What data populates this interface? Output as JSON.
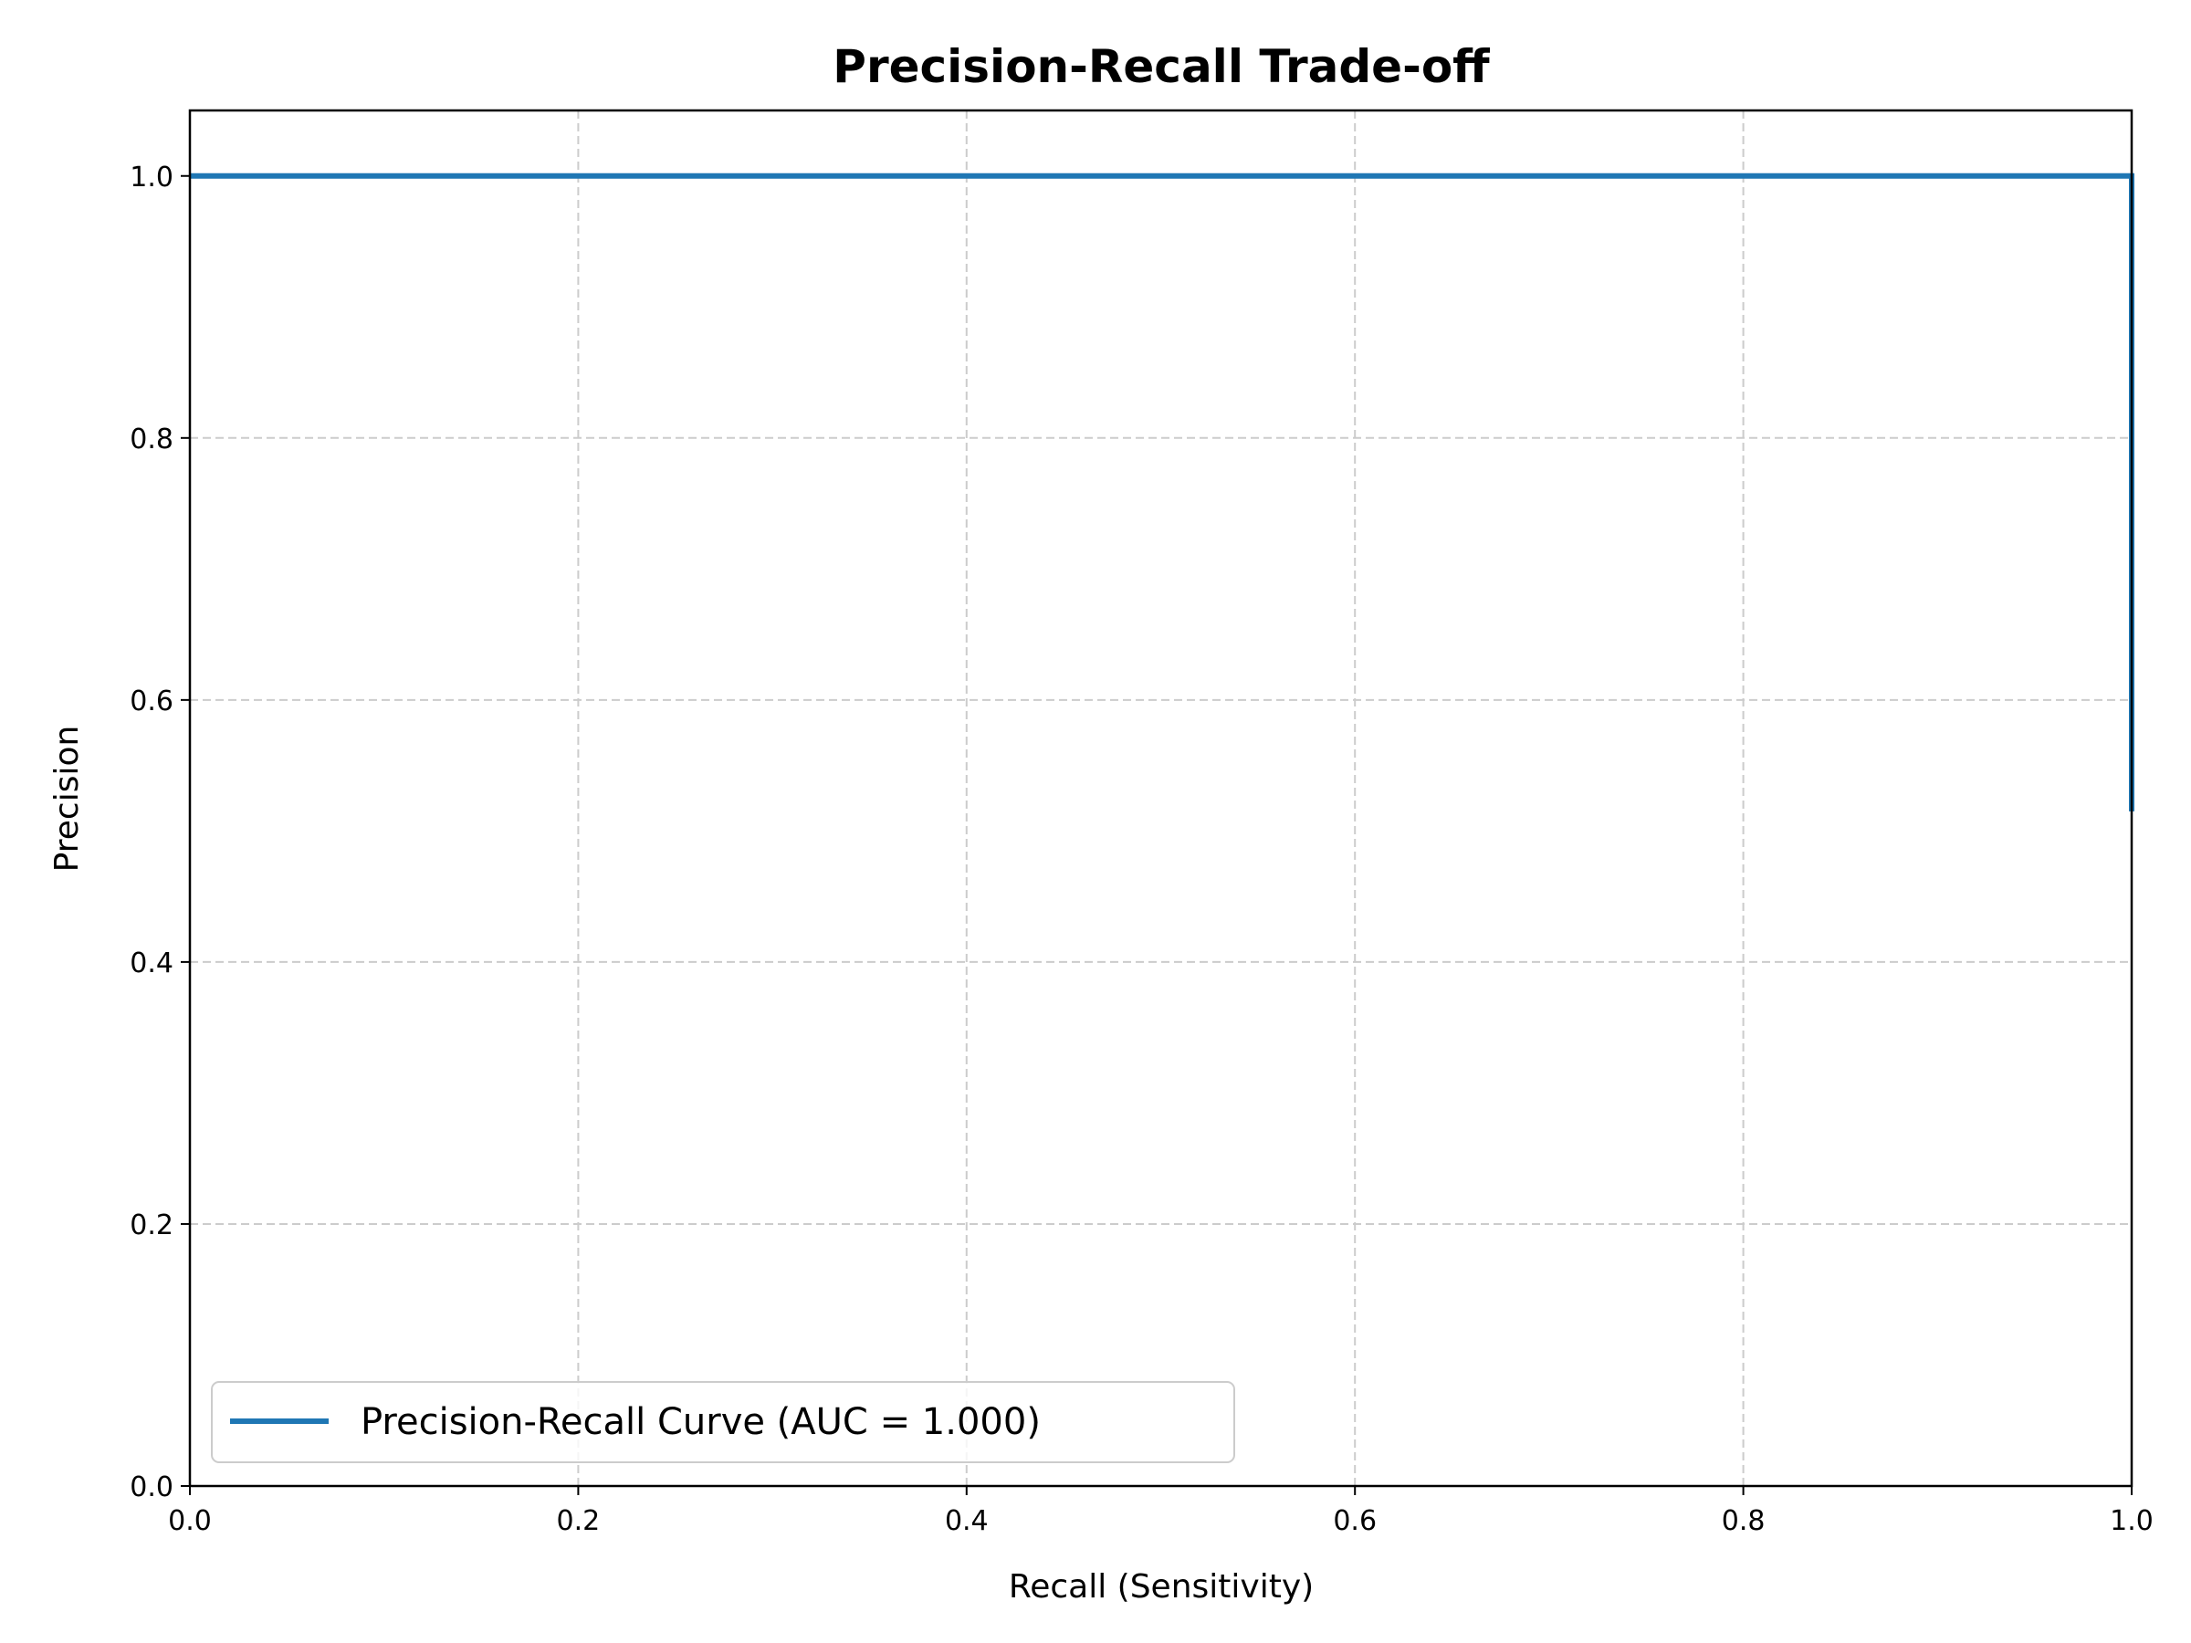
{
  "chart_data": {
    "type": "line",
    "title": "Precision-Recall Trade-off",
    "xlabel": "Recall (Sensitivity)",
    "ylabel": "Precision",
    "xlim": [
      0,
      1
    ],
    "ylim": [
      0,
      1.05
    ],
    "xticks": [
      "0.0",
      "0.2",
      "0.4",
      "0.6",
      "0.8",
      "1.0"
    ],
    "yticks": [
      "0.0",
      "0.2",
      "0.4",
      "0.6",
      "0.8",
      "1.0"
    ],
    "grid": true,
    "legend_position": "lower-left",
    "series": [
      {
        "name": "Precision-Recall Curve (AUC = 1.000)",
        "color": "#1f77b4",
        "x": [
          0.0,
          1.0,
          1.0
        ],
        "y": [
          1.0,
          1.0,
          0.515
        ]
      }
    ]
  }
}
